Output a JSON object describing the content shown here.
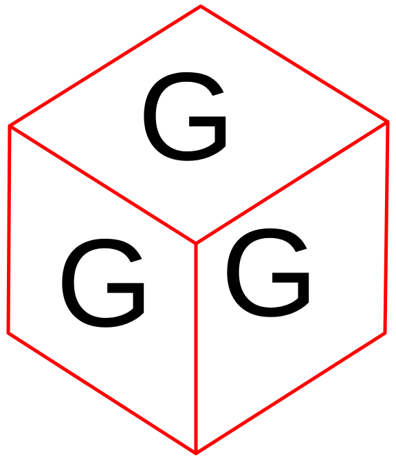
{
  "diagram": {
    "edge_color": "#ff0000",
    "text_color": "#000000",
    "faces": {
      "top": {
        "letter": "G"
      },
      "left": {
        "letter": "G"
      },
      "right": {
        "letter": "G"
      }
    }
  }
}
